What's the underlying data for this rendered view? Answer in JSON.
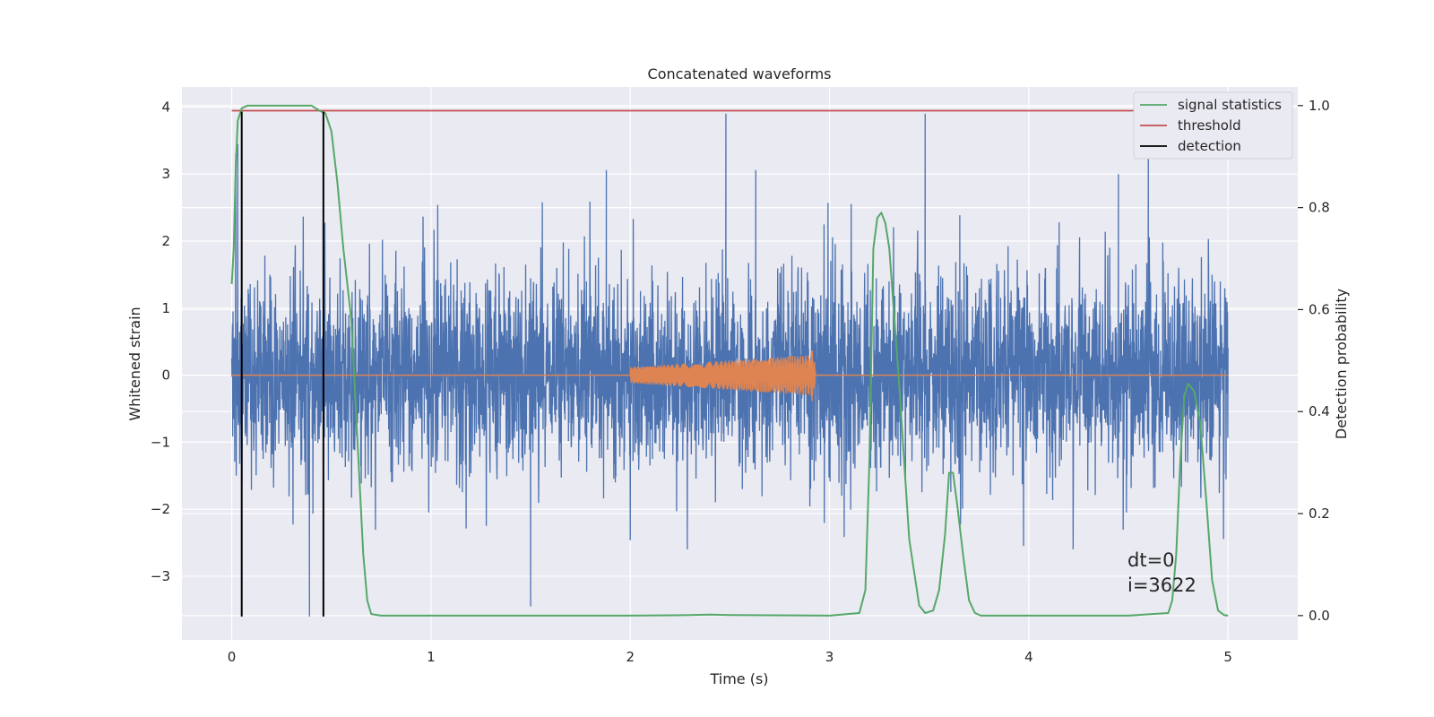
{
  "chart_data": {
    "type": "line",
    "title": "Concatenated waveforms",
    "xlabel": "Time (s)",
    "ylabel": "Whitened strain",
    "y2label": "Detection probability",
    "xlim": [
      -0.25,
      5.35
    ],
    "ylim": [
      -3.95,
      4.3
    ],
    "y2lim": [
      -0.0477,
      1.0366
    ],
    "xticks": [
      0,
      1,
      2,
      3,
      4,
      5
    ],
    "yticks": [
      -3,
      -2,
      -1,
      0,
      1,
      2,
      3,
      4
    ],
    "y2ticks": [
      0.0,
      0.2,
      0.4,
      0.6,
      0.8,
      1.0
    ],
    "xtick_labels": [
      "0",
      "1",
      "2",
      "3",
      "4",
      "5"
    ],
    "ytick_labels": [
      "−3",
      "−2",
      "−1",
      "0",
      "1",
      "2",
      "3",
      "4"
    ],
    "y2tick_labels": [
      "0.0",
      "0.2",
      "0.4",
      "0.6",
      "0.8",
      "1.0"
    ],
    "grid": true,
    "legend_position": "top-right",
    "annotation": [
      "dt=0",
      "i=3622"
    ],
    "colors": {
      "noise": "#4c72b0",
      "injection": "#dd8452",
      "signal_statistics": "#55a868",
      "threshold": "#c44e52",
      "detection": "#000000",
      "plot_bg": "#eaeaf2",
      "grid": "#ffffff"
    },
    "series": [
      {
        "name": "signal statistics",
        "axis": "right",
        "x": [
          0.0,
          0.01,
          0.02,
          0.03,
          0.05,
          0.08,
          0.12,
          0.2,
          0.3,
          0.4,
          0.44,
          0.47,
          0.5,
          0.53,
          0.56,
          0.6,
          0.63,
          0.66,
          0.68,
          0.7,
          0.75,
          1.0,
          1.5,
          2.0,
          2.3,
          2.4,
          2.5,
          3.0,
          3.15,
          3.18,
          3.2,
          3.22,
          3.24,
          3.26,
          3.28,
          3.3,
          3.35,
          3.4,
          3.45,
          3.48,
          3.52,
          3.55,
          3.58,
          3.6,
          3.62,
          3.64,
          3.67,
          3.7,
          3.73,
          3.76,
          3.8,
          4.0,
          4.5,
          4.7,
          4.72,
          4.74,
          4.76,
          4.78,
          4.8,
          4.83,
          4.86,
          4.89,
          4.92,
          4.95,
          4.98,
          5.0
        ],
        "y": [
          0.65,
          0.72,
          0.88,
          0.97,
          0.995,
          1.0,
          1.0,
          1.0,
          1.0,
          1.0,
          0.99,
          0.985,
          0.95,
          0.85,
          0.72,
          0.58,
          0.35,
          0.12,
          0.03,
          0.003,
          0.0,
          0.0,
          0.0,
          0.0,
          0.001,
          0.002,
          0.001,
          0.0,
          0.005,
          0.05,
          0.3,
          0.72,
          0.78,
          0.79,
          0.77,
          0.72,
          0.45,
          0.15,
          0.02,
          0.005,
          0.01,
          0.05,
          0.16,
          0.28,
          0.28,
          0.22,
          0.12,
          0.03,
          0.005,
          0.0,
          0.0,
          0.0,
          0.0,
          0.005,
          0.03,
          0.12,
          0.3,
          0.43,
          0.455,
          0.44,
          0.38,
          0.23,
          0.07,
          0.01,
          0.001,
          0.0
        ]
      },
      {
        "name": "threshold",
        "axis": "right",
        "x": [
          0.0,
          5.0
        ],
        "y": [
          0.99,
          0.99
        ]
      },
      {
        "name": "detection",
        "axis": "left",
        "segments": [
          {
            "x": 0.05,
            "y": [
              -3.6,
              3.93
            ]
          },
          {
            "x": 0.46,
            "y": [
              -3.6,
              3.93
            ]
          }
        ]
      },
      {
        "name": "",
        "role": "injection waveform",
        "axis": "left",
        "x": [
          0.0,
          2.0,
          2.0,
          2.9,
          2.92,
          2.93,
          5.0
        ],
        "amplitude_envelope": [
          0.0,
          0.0,
          0.12,
          0.3,
          0.45,
          0.0,
          0.0
        ]
      },
      {
        "name": "",
        "role": "whitened strain noise",
        "axis": "left",
        "x_range": [
          0.0,
          5.0
        ],
        "typical_amplitude": 1.0,
        "peak_values": [
          {
            "x": 0.02,
            "y": 3.3
          },
          {
            "x": 0.03,
            "y": 3.45
          },
          {
            "x": 0.39,
            "y": -3.6
          },
          {
            "x": 1.5,
            "y": -3.45
          },
          {
            "x": 1.88,
            "y": 3.06
          },
          {
            "x": 2.48,
            "y": 3.9
          },
          {
            "x": 2.63,
            "y": 3.06
          },
          {
            "x": 3.48,
            "y": 3.9
          },
          {
            "x": 4.6,
            "y": 3.33
          },
          {
            "x": 4.45,
            "y": 3.0
          }
        ]
      }
    ]
  }
}
